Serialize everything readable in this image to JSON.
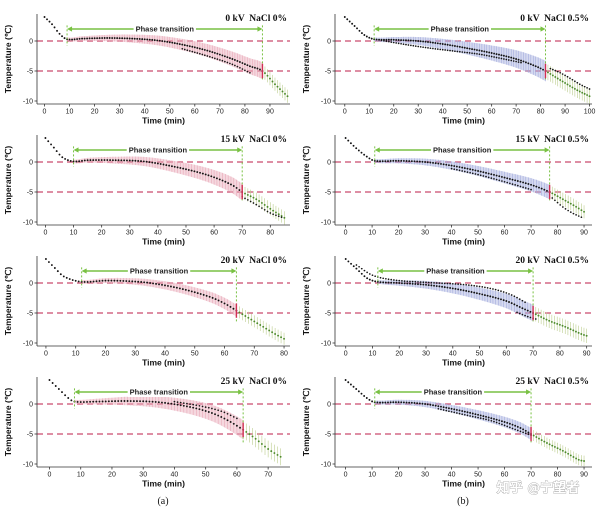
{
  "figure": {
    "ylabel": "Temperature (℃)",
    "xlabel": "Time (min)",
    "phase_label": "Phase transition",
    "sub_a": "(a)",
    "sub_b": "(b)",
    "watermark": "知乎 @宁望者"
  },
  "colors": {
    "ref_line": "#c94b6d",
    "phase": "#79c143",
    "post_bar": "#bccd8e",
    "dot": "#141414",
    "dot_post": "#4c8a2b",
    "marker": "#d12f55"
  },
  "chart_data": [
    {
      "type": "line",
      "title": "0 kV  NaCl 0%",
      "xlim": [
        -3,
        98
      ],
      "ylim": [
        -10.5,
        4.5
      ],
      "x_ticks": [
        0,
        10,
        20,
        30,
        40,
        50,
        60,
        70,
        80,
        90
      ],
      "y_ticks": [
        0,
        -5,
        -10
      ],
      "phase": [
        9,
        87
      ],
      "ref_lines": [
        0,
        -5
      ],
      "err_max": 1.4,
      "err_post": 1.1,
      "band_color": "#e8a9b8",
      "curve": [
        [
          0,
          4
        ],
        [
          3,
          2.8
        ],
        [
          6,
          1.2
        ],
        [
          9,
          0.3
        ],
        [
          15,
          0.4
        ],
        [
          25,
          0.5
        ],
        [
          35,
          0.4
        ],
        [
          45,
          0.1
        ],
        [
          55,
          -0.6
        ],
        [
          65,
          -1.6
        ],
        [
          75,
          -3
        ],
        [
          82,
          -4.2
        ],
        [
          87,
          -5
        ],
        [
          92,
          -7.2
        ],
        [
          97,
          -9.2
        ]
      ],
      "extra": [
        [
          [
            55,
            -1.3
          ],
          [
            65,
            -2.5
          ],
          [
            75,
            -3.9
          ],
          [
            82,
            -5.3
          ]
        ]
      ]
    },
    {
      "type": "line",
      "title": "0 kV  NaCl 0.5%",
      "xlim": [
        -4,
        101
      ],
      "ylim": [
        -10.5,
        4.5
      ],
      "x_ticks": [
        0,
        10,
        20,
        30,
        40,
        50,
        60,
        70,
        80,
        90,
        100
      ],
      "y_ticks": [
        0,
        -5,
        -10
      ],
      "phase": [
        12,
        82
      ],
      "ref_lines": [
        0,
        -5
      ],
      "err_max": 1.7,
      "err_post": 1.3,
      "band_color": "#a3acdd",
      "curve": [
        [
          0,
          4
        ],
        [
          4,
          2.5
        ],
        [
          8,
          1
        ],
        [
          12,
          0.3
        ],
        [
          20,
          0.2
        ],
        [
          30,
          0
        ],
        [
          40,
          -0.5
        ],
        [
          50,
          -1.2
        ],
        [
          60,
          -2
        ],
        [
          70,
          -3
        ],
        [
          78,
          -4.2
        ],
        [
          82,
          -5
        ],
        [
          88,
          -6.5
        ],
        [
          95,
          -8.2
        ],
        [
          100,
          -9.2
        ]
      ],
      "extra": [
        [
          [
            15,
            0.1
          ],
          [
            25,
            -0.6
          ],
          [
            35,
            -1.2
          ],
          [
            45,
            -1.7
          ],
          [
            55,
            -2.2
          ],
          [
            65,
            -3
          ],
          [
            72,
            -3.6
          ]
        ],
        [
          [
            84,
            -4.6
          ],
          [
            88,
            -5.3
          ],
          [
            92,
            -6.2
          ],
          [
            96,
            -7.2
          ],
          [
            100,
            -8
          ]
        ]
      ]
    },
    {
      "type": "line",
      "title": "15 kV  NaCl 0%",
      "xlim": [
        -3,
        87
      ],
      "ylim": [
        -10.5,
        4.5
      ],
      "x_ticks": [
        0,
        10,
        20,
        30,
        40,
        50,
        60,
        70,
        80
      ],
      "y_ticks": [
        0,
        -5,
        -10
      ],
      "phase": [
        10,
        70
      ],
      "ref_lines": [
        0,
        -5
      ],
      "err_max": 1.4,
      "err_post": 1.1,
      "band_color": "#e8a9b8",
      "curve": [
        [
          0,
          4
        ],
        [
          3,
          2.4
        ],
        [
          6,
          0.8
        ],
        [
          10,
          0.1
        ],
        [
          15,
          0.3
        ],
        [
          25,
          0.3
        ],
        [
          35,
          0.1
        ],
        [
          45,
          -0.7
        ],
        [
          55,
          -1.8
        ],
        [
          62,
          -2.9
        ],
        [
          67,
          -4
        ],
        [
          70,
          -5
        ],
        [
          75,
          -6.2
        ],
        [
          80,
          -7.8
        ],
        [
          85,
          -9.3
        ]
      ],
      "extra": [
        [
          [
            70,
            -5.8
          ],
          [
            75,
            -7.1
          ],
          [
            80,
            -8.5
          ],
          [
            84,
            -9.2
          ]
        ]
      ]
    },
    {
      "type": "line",
      "title": "15 kV  NaCl 0.5%",
      "xlim": [
        -4,
        93
      ],
      "ylim": [
        -10.5,
        4.5
      ],
      "x_ticks": [
        0,
        10,
        20,
        30,
        40,
        50,
        60,
        70,
        80,
        90
      ],
      "y_ticks": [
        0,
        -5,
        -10
      ],
      "phase": [
        11,
        77
      ],
      "ref_lines": [
        0,
        -5
      ],
      "err_max": 1.2,
      "err_post": 1.1,
      "band_color": "#a3acdd",
      "curve": [
        [
          0,
          4
        ],
        [
          4,
          2.3
        ],
        [
          8,
          0.9
        ],
        [
          11,
          0.2
        ],
        [
          20,
          0.2
        ],
        [
          30,
          0
        ],
        [
          40,
          -0.6
        ],
        [
          50,
          -1.5
        ],
        [
          60,
          -2.6
        ],
        [
          70,
          -3.8
        ],
        [
          77,
          -5
        ],
        [
          82,
          -6.2
        ],
        [
          86,
          -7.2
        ],
        [
          90,
          -8.3
        ]
      ],
      "extra": [
        [
          [
            40,
            -1.1
          ],
          [
            50,
            -2.1
          ],
          [
            60,
            -3.3
          ],
          [
            70,
            -4.6
          ]
        ],
        [
          [
            78,
            -6
          ],
          [
            82,
            -7.5
          ],
          [
            86,
            -8.6
          ],
          [
            89,
            -9.2
          ]
        ]
      ]
    },
    {
      "type": "line",
      "title": "20 kV  NaCl 0%",
      "xlim": [
        -3,
        82
      ],
      "ylim": [
        -10.5,
        4.5
      ],
      "x_ticks": [
        0,
        10,
        20,
        30,
        40,
        50,
        60,
        70,
        80
      ],
      "y_ticks": [
        0,
        -5,
        -10
      ],
      "phase": [
        12,
        64
      ],
      "ref_lines": [
        0,
        -5
      ],
      "err_max": 1.0,
      "err_post": 1.0,
      "band_color": "#e8a9b8",
      "curve": [
        [
          0,
          4
        ],
        [
          3,
          2.5
        ],
        [
          6,
          1.1
        ],
        [
          12,
          0.2
        ],
        [
          20,
          0.4
        ],
        [
          28,
          0.3
        ],
        [
          35,
          0
        ],
        [
          45,
          -0.9
        ],
        [
          55,
          -2.3
        ],
        [
          60,
          -3.4
        ],
        [
          64,
          -4.6
        ],
        [
          67,
          -5.5
        ],
        [
          72,
          -7
        ],
        [
          77,
          -8.5
        ],
        [
          80,
          -9.3
        ]
      ],
      "extra": []
    },
    {
      "type": "line",
      "title": "20 kV  NaCl 0.5%",
      "xlim": [
        -4,
        92
      ],
      "ylim": [
        -10.5,
        4.5
      ],
      "x_ticks": [
        0,
        10,
        20,
        30,
        40,
        50,
        60,
        70,
        80,
        90
      ],
      "y_ticks": [
        0,
        -5,
        -10
      ],
      "phase": [
        12,
        70
      ],
      "ref_lines": [
        0,
        -5
      ],
      "err_max": 1.4,
      "err_post": 1.2,
      "band_color": "#a3acdd",
      "curve": [
        [
          0,
          4
        ],
        [
          4,
          2.4
        ],
        [
          8,
          0.8
        ],
        [
          12,
          0.2
        ],
        [
          20,
          0
        ],
        [
          30,
          -0.3
        ],
        [
          40,
          -0.9
        ],
        [
          50,
          -1.8
        ],
        [
          60,
          -3
        ],
        [
          66,
          -4.2
        ],
        [
          70,
          -5
        ],
        [
          76,
          -6.3
        ],
        [
          82,
          -7.3
        ],
        [
          88,
          -8.5
        ],
        [
          90,
          -8.8
        ]
      ],
      "extra": [
        [
          [
            4,
            3
          ],
          [
            10,
            1.3
          ],
          [
            18,
            0.5
          ],
          [
            30,
            0.1
          ],
          [
            45,
            -0.3
          ],
          [
            55,
            -1
          ],
          [
            62,
            -2
          ],
          [
            67,
            -3.2
          ]
        ],
        [
          [
            64,
            -4.9
          ],
          [
            68,
            -5.6
          ],
          [
            71,
            -6
          ]
        ]
      ]
    },
    {
      "type": "line",
      "title": "25 kV  NaCl 0%",
      "xlim": [
        -4,
        77
      ],
      "ylim": [
        -10.5,
        4.5
      ],
      "x_ticks": [
        0,
        10,
        20,
        30,
        40,
        50,
        60,
        70
      ],
      "y_ticks": [
        0,
        -5,
        -10
      ],
      "phase": [
        8,
        62
      ],
      "ref_lines": [
        0,
        -5
      ],
      "err_max": 1.6,
      "err_post": 1.4,
      "band_color": "#e8a9b8",
      "curve": [
        [
          0,
          4
        ],
        [
          3,
          2.5
        ],
        [
          6,
          1
        ],
        [
          8,
          0.4
        ],
        [
          15,
          0.4
        ],
        [
          25,
          0.5
        ],
        [
          35,
          0.3
        ],
        [
          45,
          -0.5
        ],
        [
          52,
          -1.5
        ],
        [
          57,
          -2.7
        ],
        [
          62,
          -4.3
        ],
        [
          66,
          -5.8
        ],
        [
          70,
          -7.5
        ],
        [
          74,
          -8.8
        ]
      ],
      "extra": [
        [
          [
            40,
            0.4
          ],
          [
            48,
            -0.3
          ],
          [
            55,
            -1.2
          ],
          [
            60,
            -2.4
          ]
        ]
      ]
    },
    {
      "type": "line",
      "title": "25 kV  NaCl 0.5%",
      "xlim": [
        -4,
        93
      ],
      "ylim": [
        -10.5,
        4.5
      ],
      "x_ticks": [
        0,
        10,
        20,
        30,
        40,
        50,
        60,
        70,
        80,
        90
      ],
      "y_ticks": [
        0,
        -5,
        -10
      ],
      "phase": [
        11,
        70
      ],
      "ref_lines": [
        0,
        -5
      ],
      "err_max": 1.0,
      "err_post": 0.9,
      "band_color": "#a3acdd",
      "curve": [
        [
          0,
          4
        ],
        [
          4,
          2.5
        ],
        [
          8,
          1
        ],
        [
          11,
          0.3
        ],
        [
          20,
          0.3
        ],
        [
          30,
          0
        ],
        [
          40,
          -0.8
        ],
        [
          50,
          -1.8
        ],
        [
          60,
          -3
        ],
        [
          66,
          -4
        ],
        [
          70,
          -5
        ],
        [
          76,
          -6.5
        ],
        [
          82,
          -7.8
        ],
        [
          88,
          -9.3
        ],
        [
          90,
          -9.5
        ]
      ],
      "extra": [
        [
          [
            35,
            -0.8
          ],
          [
            45,
            -1.8
          ],
          [
            55,
            -2.8
          ],
          [
            65,
            -4.4
          ],
          [
            70,
            -5.2
          ]
        ]
      ]
    }
  ]
}
